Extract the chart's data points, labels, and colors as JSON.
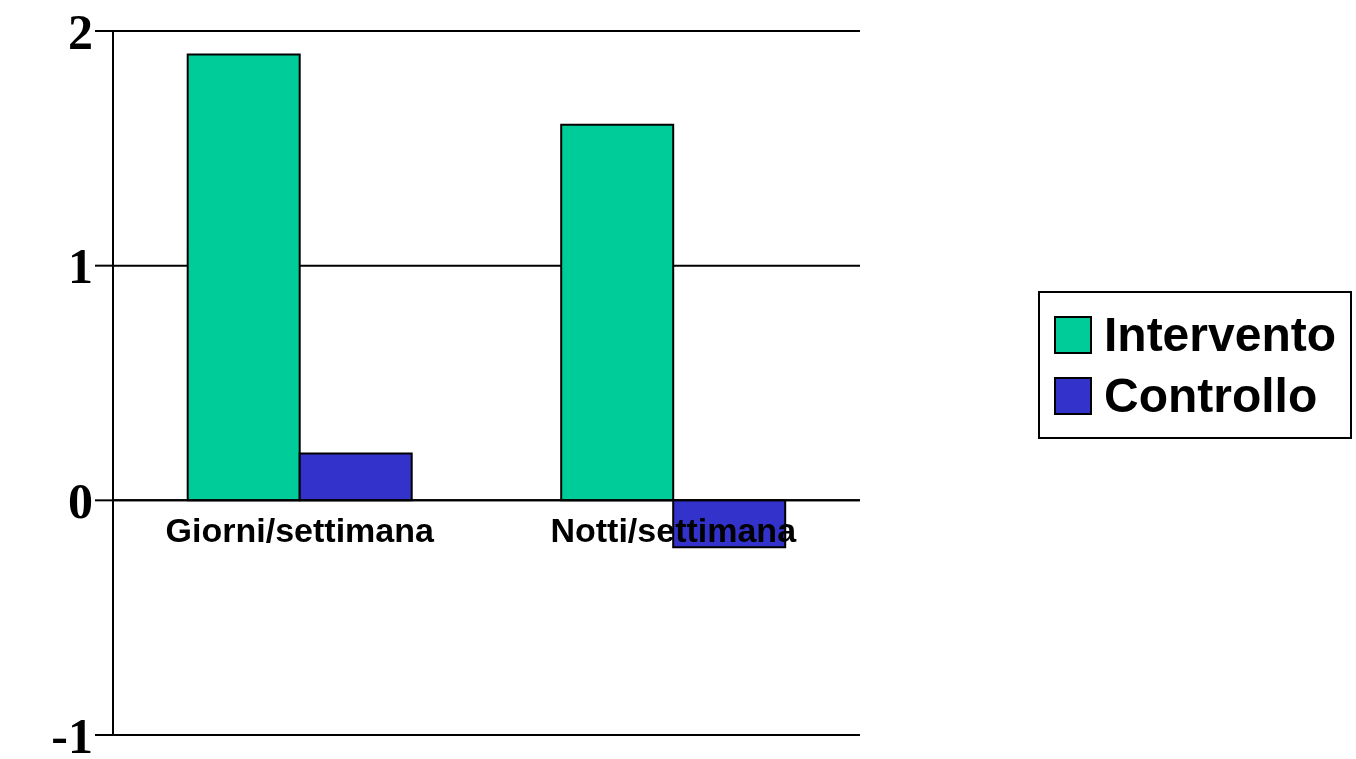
{
  "chart_data": {
    "type": "bar",
    "categories": [
      "Giorni/settimana",
      "Notti/settimana"
    ],
    "series": [
      {
        "name": "Intervento",
        "color": "#00cc99",
        "values": [
          1.9,
          1.6
        ]
      },
      {
        "name": "Controllo",
        "color": "#3333cc",
        "values": [
          0.2,
          -0.2
        ]
      }
    ],
    "ylim": [
      -1,
      2
    ],
    "yticks": [
      -1,
      0,
      1,
      2
    ],
    "grid": "y",
    "legend": "right"
  }
}
